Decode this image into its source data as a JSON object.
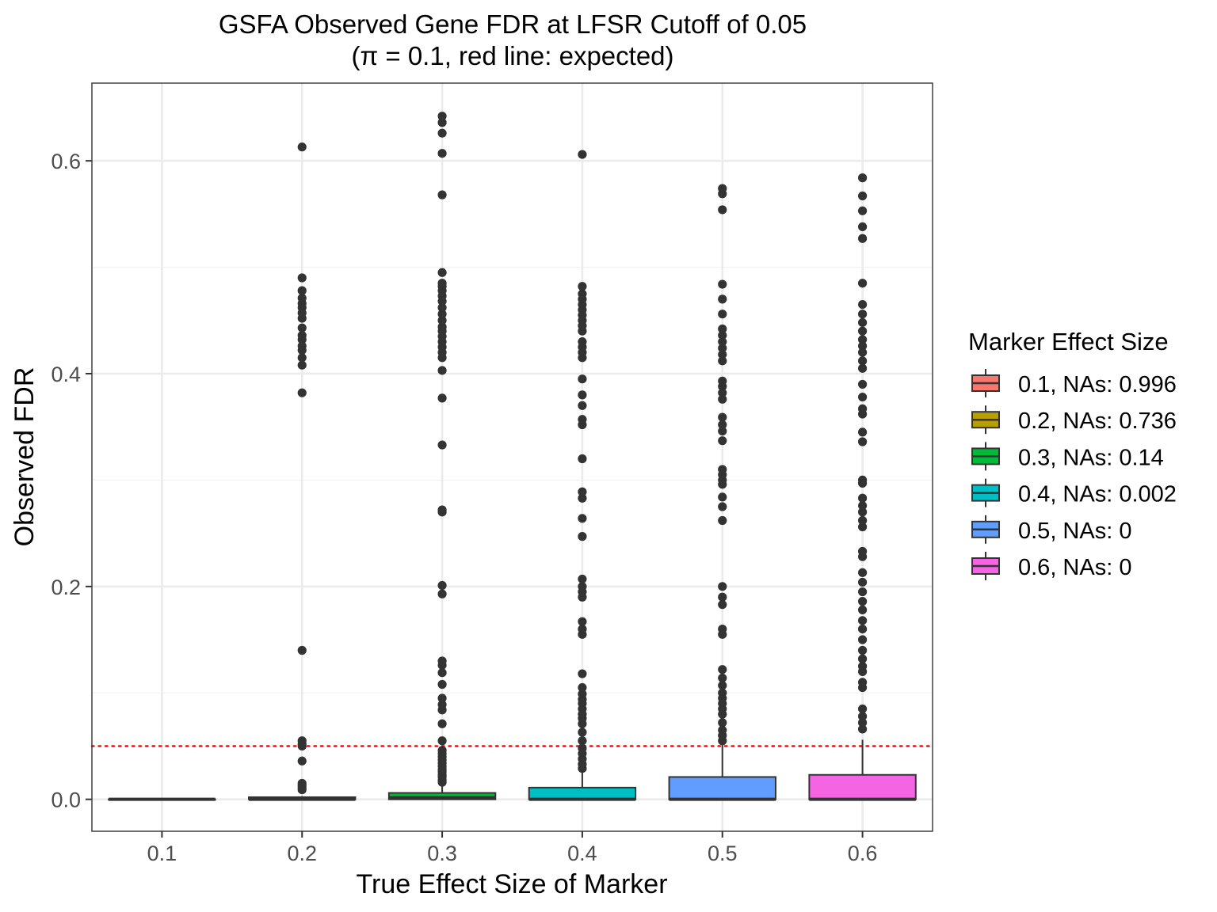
{
  "chart_data": {
    "type": "boxplot",
    "title": "GSFA Observed Gene FDR at LFSR Cutoff of 0.05",
    "subtitle": "(π = 0.1, red line: expected)",
    "xlabel": "True Effect Size of Marker",
    "ylabel": "Observed FDR",
    "ylim": [
      -0.03,
      0.673
    ],
    "y_ticks": [
      "0.0",
      "0.2",
      "0.4",
      "0.6"
    ],
    "grid": true,
    "reference_line": {
      "y": 0.05,
      "color": "#ff0000",
      "style": "dotted"
    },
    "legend": {
      "title": "Marker Effect Size",
      "position": "right"
    },
    "categories": [
      "0.1",
      "0.2",
      "0.3",
      "0.4",
      "0.5",
      "0.6"
    ],
    "series": [
      {
        "name": "0.1, NAs: 0.996",
        "color": "#F8766D",
        "q1": 0,
        "median": 0,
        "q3": 0,
        "whisker_low": 0,
        "whisker_high": 0,
        "outliers": []
      },
      {
        "name": "0.2, NAs: 0.736",
        "color": "#B79F00",
        "q1": 0,
        "median": 0,
        "q3": 0.002,
        "whisker_low": 0,
        "whisker_high": 0.003,
        "outliers": [
          0.009,
          0.011,
          0.013,
          0.015,
          0.036,
          0.05,
          0.052,
          0.055,
          0.14,
          0.382,
          0.408,
          0.415,
          0.422,
          0.426,
          0.432,
          0.436,
          0.443,
          0.452,
          0.457,
          0.462,
          0.466,
          0.471,
          0.478,
          0.49,
          0.613
        ]
      },
      {
        "name": "0.3, NAs: 0.14",
        "color": "#00BA38",
        "q1": 0,
        "median": 0.0015,
        "q3": 0.006,
        "whisker_low": 0,
        "whisker_high": 0.015,
        "outliers": [
          0.016,
          0.018,
          0.021,
          0.023,
          0.026,
          0.028,
          0.031,
          0.034,
          0.037,
          0.04,
          0.043,
          0.046,
          0.055,
          0.071,
          0.084,
          0.089,
          0.095,
          0.108,
          0.119,
          0.126,
          0.13,
          0.193,
          0.201,
          0.27,
          0.272,
          0.333,
          0.377,
          0.403,
          0.415,
          0.42,
          0.425,
          0.43,
          0.435,
          0.44,
          0.444,
          0.45,
          0.456,
          0.462,
          0.468,
          0.473,
          0.478,
          0.482,
          0.485,
          0.495,
          0.568,
          0.607,
          0.626,
          0.636,
          0.642
        ]
      },
      {
        "name": "0.4, NAs: 0.002",
        "color": "#00BFC4",
        "q1": 0,
        "median": 0,
        "q3": 0.011,
        "whisker_low": 0,
        "whisker_high": 0.027,
        "outliers": [
          0.029,
          0.033,
          0.038,
          0.043,
          0.048,
          0.055,
          0.063,
          0.071,
          0.076,
          0.08,
          0.085,
          0.09,
          0.094,
          0.099,
          0.105,
          0.118,
          0.155,
          0.16,
          0.167,
          0.19,
          0.195,
          0.2,
          0.207,
          0.247,
          0.264,
          0.283,
          0.289,
          0.32,
          0.352,
          0.357,
          0.37,
          0.38,
          0.395,
          0.415,
          0.42,
          0.425,
          0.43,
          0.44,
          0.445,
          0.45,
          0.455,
          0.46,
          0.465,
          0.47,
          0.475,
          0.482,
          0.606
        ]
      },
      {
        "name": "0.5, NAs: 0",
        "color": "#619CFF",
        "q1": 0,
        "median": 0,
        "q3": 0.021,
        "whisker_low": 0,
        "whisker_high": 0.053,
        "outliers": [
          0.055,
          0.06,
          0.065,
          0.072,
          0.08,
          0.085,
          0.09,
          0.095,
          0.1,
          0.107,
          0.114,
          0.122,
          0.155,
          0.16,
          0.183,
          0.19,
          0.2,
          0.262,
          0.275,
          0.284,
          0.296,
          0.3,
          0.305,
          0.31,
          0.337,
          0.346,
          0.352,
          0.359,
          0.376,
          0.382,
          0.388,
          0.393,
          0.412,
          0.418,
          0.424,
          0.43,
          0.436,
          0.442,
          0.456,
          0.47,
          0.484,
          0.554,
          0.569,
          0.574
        ]
      },
      {
        "name": "0.6, NAs: 0",
        "color": "#F564E3",
        "q1": 0,
        "median": 0,
        "q3": 0.023,
        "whisker_low": 0,
        "whisker_high": 0.056,
        "outliers": [
          0.066,
          0.072,
          0.078,
          0.085,
          0.105,
          0.11,
          0.12,
          0.125,
          0.132,
          0.14,
          0.15,
          0.16,
          0.168,
          0.178,
          0.186,
          0.195,
          0.204,
          0.213,
          0.228,
          0.233,
          0.256,
          0.262,
          0.27,
          0.276,
          0.283,
          0.297,
          0.3,
          0.336,
          0.345,
          0.362,
          0.367,
          0.378,
          0.39,
          0.405,
          0.412,
          0.42,
          0.426,
          0.432,
          0.44,
          0.448,
          0.456,
          0.465,
          0.485,
          0.527,
          0.538,
          0.553,
          0.567,
          0.584
        ]
      }
    ]
  }
}
